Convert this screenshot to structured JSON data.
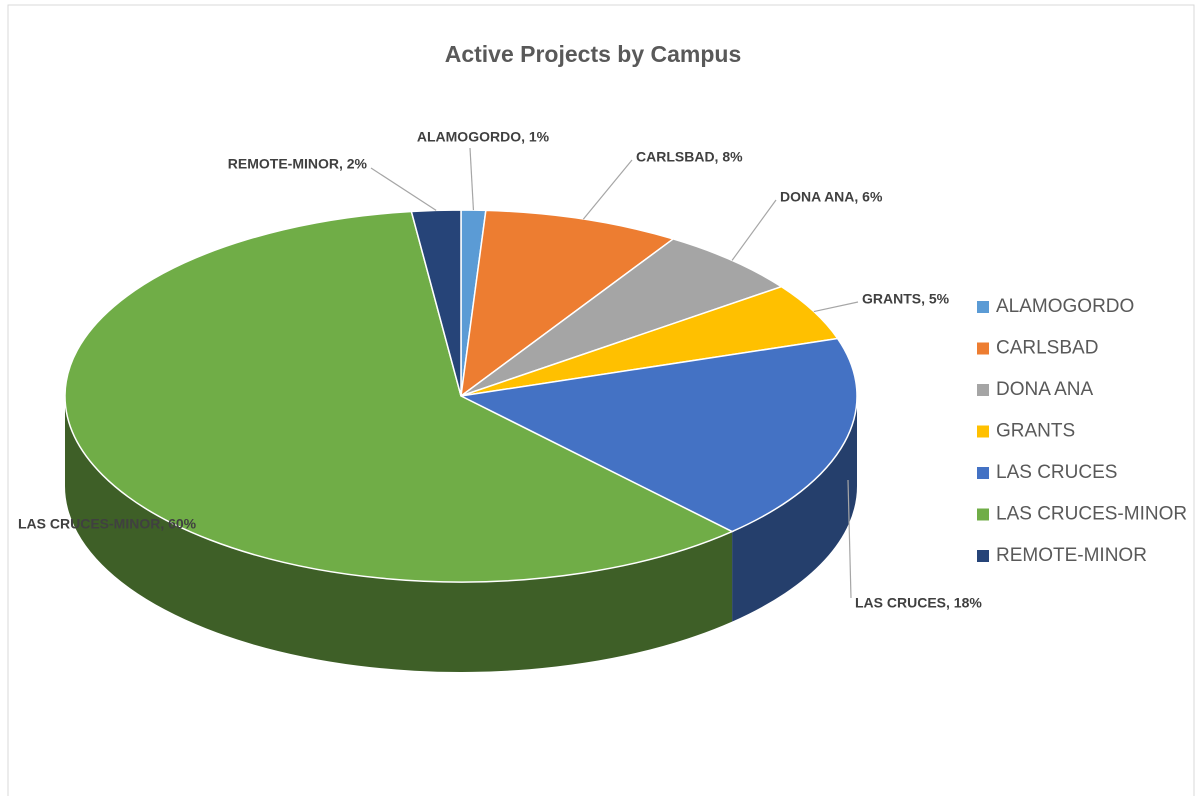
{
  "chart_data": {
    "type": "pie3d",
    "title": "Active Projects by Campus",
    "categories": [
      "ALAMOGORDO",
      "CARLSBAD",
      "DONA ANA",
      "GRANTS",
      "LAS CRUCES",
      "LAS CRUCES-MINOR",
      "REMOTE-MINOR"
    ],
    "values": [
      1,
      8,
      6,
      5,
      18,
      60,
      2
    ],
    "value_labels": [
      "ALAMOGORDO, 1%",
      "CARLSBAD, 8%",
      "DONA ANA, 6%",
      "GRANTS, 5%",
      "LAS CRUCES, 18%",
      "LAS CRUCES-MINOR, 60%",
      "REMOTE-MINOR, 2%"
    ],
    "colors": [
      "#5B9BD5",
      "#ED7D31",
      "#A5A5A5",
      "#FFC000",
      "#4472C4",
      "#70AD47",
      "#264478"
    ],
    "legend": "right"
  }
}
